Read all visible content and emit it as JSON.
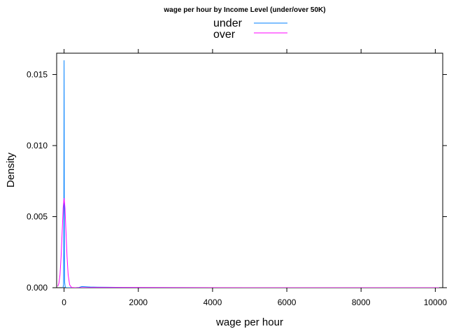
{
  "chart_data": {
    "type": "line",
    "title": "wage per hour by Income Level (under/over 50K)",
    "xlabel": "wage per hour",
    "ylabel": "Density",
    "xlim": [
      -200,
      10200
    ],
    "ylim": [
      0,
      0.0165
    ],
    "x_ticks": [
      0,
      2000,
      4000,
      6000,
      8000,
      10000
    ],
    "x_tick_labels": [
      "0",
      "2000",
      "4000",
      "6000",
      "8000",
      "10000"
    ],
    "y_ticks": [
      0,
      0.005,
      0.01,
      0.015
    ],
    "y_tick_labels": [
      "0.000",
      "0.005",
      "0.010",
      "0.015"
    ],
    "grid": false,
    "legend_position": "top-center",
    "series": [
      {
        "name": "under",
        "color": "#0080ff",
        "x": [
          -30,
          -15,
          -8,
          -4,
          0,
          4,
          8,
          15,
          30,
          60,
          120,
          200,
          300,
          400,
          480,
          560,
          700,
          900,
          1200,
          1600,
          2000,
          3000,
          4000,
          6000,
          8000,
          10000,
          10100
        ],
        "y": [
          0,
          0.0002,
          0.0025,
          0.009,
          0.016,
          0.009,
          0.0025,
          0.0004,
          5e-05,
          0,
          0,
          0,
          0,
          2e-05,
          8e-05,
          7e-05,
          5e-05,
          4e-05,
          3e-05,
          2e-05,
          1e-05,
          4e-06,
          2e-06,
          1e-06,
          0,
          0,
          0
        ]
      },
      {
        "name": "over",
        "color": "#ff00ff",
        "x": [
          -170,
          -140,
          -110,
          -80,
          -50,
          -25,
          0,
          25,
          50,
          80,
          110,
          150,
          200,
          300,
          500,
          800,
          1200,
          1600,
          2000,
          3000,
          5000,
          8000,
          10100
        ],
        "y": [
          0.0001,
          0.0003,
          0.0009,
          0.0022,
          0.004,
          0.0056,
          0.0063,
          0.0056,
          0.004,
          0.0022,
          0.0009,
          0.0002,
          2e-05,
          0,
          5e-06,
          1e-05,
          1e-05,
          1.5e-05,
          1e-05,
          5e-06,
          2e-06,
          1e-06,
          0
        ]
      }
    ]
  }
}
